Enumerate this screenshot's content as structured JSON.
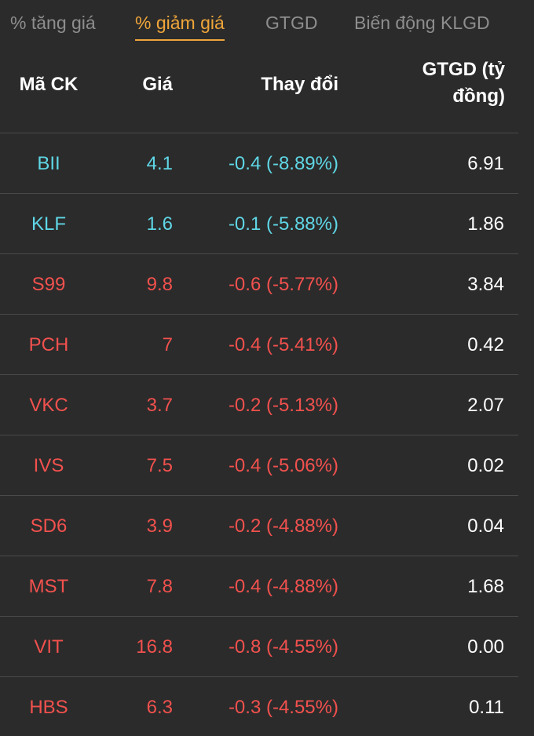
{
  "tabs": [
    {
      "label": "% tăng giá"
    },
    {
      "label": "% giảm giá"
    },
    {
      "label": "GTGD"
    },
    {
      "label": "Biến động KLGD"
    }
  ],
  "active_tab": 1,
  "colors": {
    "background": "#2b2b2b",
    "accent_active_tab": "#f0a53a",
    "inactive_tab": "#8e8e8e",
    "floor_price": "#5fd7e6",
    "decrease": "#f2514e",
    "divider": "#4a4a4a"
  },
  "header": {
    "symbol": "Mã CK",
    "price": "Giá",
    "change": "Thay đổi",
    "value_line1": "GTGD (tỷ",
    "value_line2": "đồng)"
  },
  "rows": [
    {
      "symbol": "BII",
      "price": "4.1",
      "change": "-0.4 (-8.89%)",
      "value": "6.91",
      "status": "floor"
    },
    {
      "symbol": "KLF",
      "price": "1.6",
      "change": "-0.1 (-5.88%)",
      "value": "1.86",
      "status": "floor"
    },
    {
      "symbol": "S99",
      "price": "9.8",
      "change": "-0.6 (-5.77%)",
      "value": "3.84",
      "status": "down"
    },
    {
      "symbol": "PCH",
      "price": "7",
      "change": "-0.4 (-5.41%)",
      "value": "0.42",
      "status": "down"
    },
    {
      "symbol": "VKC",
      "price": "3.7",
      "change": "-0.2 (-5.13%)",
      "value": "2.07",
      "status": "down"
    },
    {
      "symbol": "IVS",
      "price": "7.5",
      "change": "-0.4 (-5.06%)",
      "value": "0.02",
      "status": "down"
    },
    {
      "symbol": "SD6",
      "price": "3.9",
      "change": "-0.2 (-4.88%)",
      "value": "0.04",
      "status": "down"
    },
    {
      "symbol": "MST",
      "price": "7.8",
      "change": "-0.4 (-4.88%)",
      "value": "1.68",
      "status": "down"
    },
    {
      "symbol": "VIT",
      "price": "16.8",
      "change": "-0.8 (-4.55%)",
      "value": "0.00",
      "status": "down"
    },
    {
      "symbol": "HBS",
      "price": "6.3",
      "change": "-0.3 (-4.55%)",
      "value": "0.11",
      "status": "down"
    }
  ]
}
